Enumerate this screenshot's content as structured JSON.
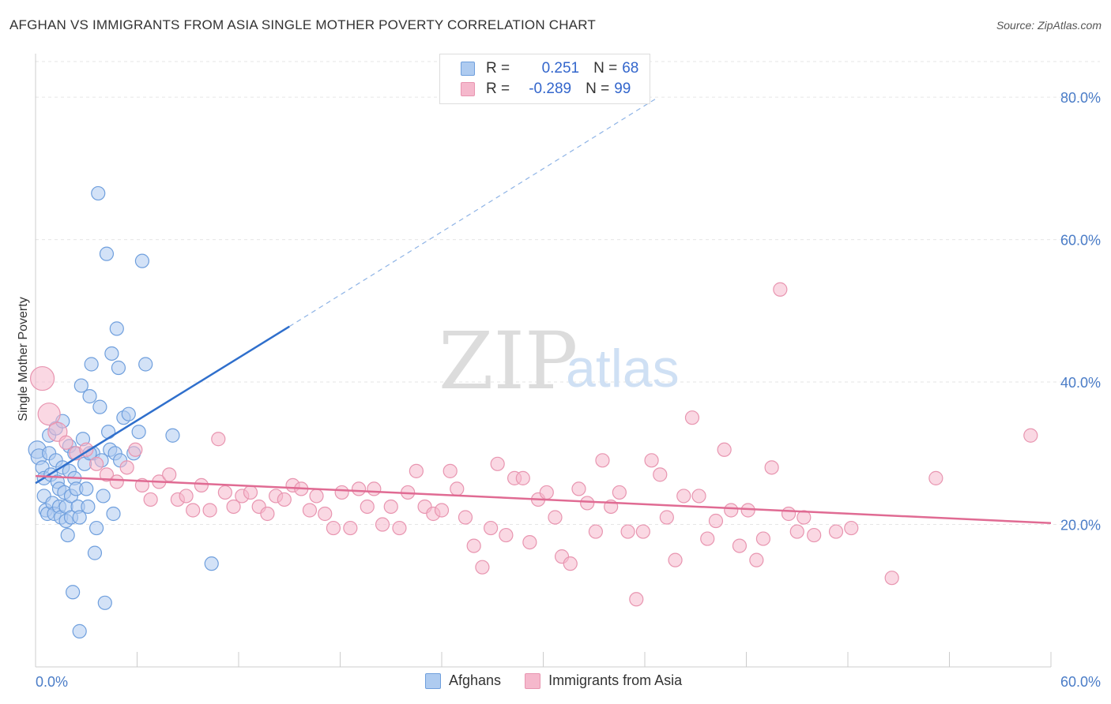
{
  "header": {
    "title": "AFGHAN VS IMMIGRANTS FROM ASIA SINGLE MOTHER POVERTY CORRELATION CHART",
    "source": "Source: ZipAtlas.com"
  },
  "watermark": {
    "zip": "ZIP",
    "atlas": "atlas"
  },
  "legend": {
    "rows": [
      {
        "r_label": "R = ",
        "r_value": "0.251",
        "n_label": "N = ",
        "n_value": "68"
      },
      {
        "r_label": "R = ",
        "r_value": "-0.289",
        "n_label": "N = ",
        "n_value": "99"
      }
    ]
  },
  "colors": {
    "afghans_fill": "#aecbf0",
    "afghans_stroke": "#6f9fdd",
    "afghans_line": "#2f6fcc",
    "asia_fill": "#f5b8cc",
    "asia_stroke": "#e895b0",
    "asia_line": "#e06b93",
    "tick_label": "#4a7cc7",
    "grid": "#e6e6e6"
  },
  "chart_data": {
    "type": "scatter",
    "title": "AFGHAN VS IMMIGRANTS FROM ASIA SINGLE MOTHER POVERTY CORRELATION CHART",
    "ylabel": "Single Mother Poverty",
    "xlim": [
      0,
      60
    ],
    "ylim": [
      0,
      85
    ],
    "x_tick_labels": [
      "0.0%",
      "60.0%"
    ],
    "y_ticks": [
      20,
      40,
      60,
      80
    ],
    "y_tick_labels": [
      "20.0%",
      "40.0%",
      "60.0%",
      "80.0%"
    ],
    "grid": "horizontal dashed",
    "legend_position": "top-center",
    "series": [
      {
        "name": "Afghans",
        "r": 0.251,
        "n": 68,
        "trend": {
          "x": [
            0,
            15
          ],
          "y": [
            25.8,
            47.8
          ],
          "extended_dashed_to": [
            36.8,
            80.0
          ]
        },
        "points": [
          [
            0.1,
            30.5
          ],
          [
            0.2,
            29.5
          ],
          [
            0.4,
            28.0
          ],
          [
            0.5,
            26.5
          ],
          [
            0.5,
            24.0
          ],
          [
            0.6,
            22.0
          ],
          [
            0.7,
            21.5
          ],
          [
            0.8,
            32.5
          ],
          [
            0.8,
            30.0
          ],
          [
            0.9,
            27.0
          ],
          [
            1.0,
            23.0
          ],
          [
            1.1,
            21.5
          ],
          [
            1.2,
            33.5
          ],
          [
            1.2,
            29.0
          ],
          [
            1.3,
            26.0
          ],
          [
            1.4,
            25.0
          ],
          [
            1.4,
            22.5
          ],
          [
            1.5,
            21.0
          ],
          [
            1.6,
            34.5
          ],
          [
            1.6,
            28.0
          ],
          [
            1.7,
            24.5
          ],
          [
            1.8,
            22.5
          ],
          [
            1.8,
            20.5
          ],
          [
            1.9,
            18.5
          ],
          [
            2.0,
            31.0
          ],
          [
            2.0,
            27.5
          ],
          [
            2.1,
            24.0
          ],
          [
            2.1,
            21.0
          ],
          [
            2.2,
            10.5
          ],
          [
            2.3,
            30.0
          ],
          [
            2.3,
            26.5
          ],
          [
            2.4,
            25.0
          ],
          [
            2.5,
            22.5
          ],
          [
            2.6,
            21.0
          ],
          [
            2.7,
            39.5
          ],
          [
            2.8,
            32.0
          ],
          [
            2.9,
            28.5
          ],
          [
            3.0,
            25.0
          ],
          [
            3.1,
            22.5
          ],
          [
            3.2,
            38.0
          ],
          [
            3.3,
            42.5
          ],
          [
            3.4,
            30.0
          ],
          [
            3.5,
            16.0
          ],
          [
            3.6,
            19.5
          ],
          [
            3.7,
            66.5
          ],
          [
            3.8,
            36.5
          ],
          [
            3.9,
            29.0
          ],
          [
            4.0,
            24.0
          ],
          [
            4.1,
            9.0
          ],
          [
            4.2,
            58.0
          ],
          [
            4.3,
            33.0
          ],
          [
            4.4,
            30.5
          ],
          [
            4.5,
            44.0
          ],
          [
            4.6,
            21.5
          ],
          [
            4.7,
            30.0
          ],
          [
            4.8,
            47.5
          ],
          [
            4.9,
            42.0
          ],
          [
            5.0,
            29.0
          ],
          [
            5.2,
            35.0
          ],
          [
            5.5,
            35.5
          ],
          [
            5.8,
            30.0
          ],
          [
            6.1,
            33.0
          ],
          [
            6.3,
            57.0
          ],
          [
            6.5,
            42.5
          ],
          [
            3.2,
            30.0
          ],
          [
            8.1,
            32.5
          ],
          [
            10.4,
            14.5
          ],
          [
            2.6,
            5.0
          ]
        ]
      },
      {
        "name": "Immigrants from Asia",
        "r": -0.289,
        "n": 99,
        "trend": {
          "x": [
            0,
            60
          ],
          "y": [
            26.8,
            20.2
          ]
        },
        "points": [
          [
            0.4,
            40.5
          ],
          [
            0.8,
            35.5
          ],
          [
            1.3,
            33.0
          ],
          [
            1.8,
            31.5
          ],
          [
            2.4,
            30.0
          ],
          [
            3.0,
            30.5
          ],
          [
            3.6,
            28.5
          ],
          [
            4.2,
            27.0
          ],
          [
            4.8,
            26.0
          ],
          [
            5.4,
            28.0
          ],
          [
            5.9,
            30.5
          ],
          [
            6.3,
            25.5
          ],
          [
            6.8,
            23.5
          ],
          [
            7.3,
            26.0
          ],
          [
            7.9,
            27.0
          ],
          [
            8.4,
            23.5
          ],
          [
            8.9,
            24.0
          ],
          [
            9.3,
            22.0
          ],
          [
            9.8,
            25.5
          ],
          [
            10.3,
            22.0
          ],
          [
            10.8,
            32.0
          ],
          [
            11.2,
            24.5
          ],
          [
            11.7,
            22.5
          ],
          [
            12.2,
            24.0
          ],
          [
            12.7,
            24.5
          ],
          [
            13.2,
            22.5
          ],
          [
            13.7,
            21.5
          ],
          [
            14.2,
            24.0
          ],
          [
            14.7,
            23.5
          ],
          [
            15.2,
            25.5
          ],
          [
            15.7,
            25.0
          ],
          [
            16.2,
            22.0
          ],
          [
            16.6,
            24.0
          ],
          [
            17.1,
            21.5
          ],
          [
            17.6,
            19.5
          ],
          [
            18.1,
            24.5
          ],
          [
            18.6,
            19.5
          ],
          [
            19.1,
            25.0
          ],
          [
            19.6,
            22.5
          ],
          [
            20.0,
            25.0
          ],
          [
            20.5,
            20.0
          ],
          [
            21.0,
            22.5
          ],
          [
            21.5,
            19.5
          ],
          [
            22.0,
            24.5
          ],
          [
            22.5,
            27.5
          ],
          [
            23.0,
            22.5
          ],
          [
            23.5,
            21.5
          ],
          [
            24.0,
            22.0
          ],
          [
            24.5,
            27.5
          ],
          [
            24.9,
            25.0
          ],
          [
            25.4,
            21.0
          ],
          [
            25.9,
            17.0
          ],
          [
            26.4,
            14.0
          ],
          [
            26.9,
            19.5
          ],
          [
            27.3,
            28.5
          ],
          [
            27.8,
            18.5
          ],
          [
            28.3,
            26.5
          ],
          [
            28.8,
            26.5
          ],
          [
            29.2,
            17.5
          ],
          [
            29.7,
            23.5
          ],
          [
            30.2,
            24.5
          ],
          [
            30.7,
            21.0
          ],
          [
            31.1,
            15.5
          ],
          [
            31.6,
            14.5
          ],
          [
            32.1,
            25.0
          ],
          [
            32.6,
            23.0
          ],
          [
            33.1,
            19.0
          ],
          [
            33.5,
            29.0
          ],
          [
            34.0,
            22.5
          ],
          [
            34.5,
            24.5
          ],
          [
            35.0,
            19.0
          ],
          [
            35.5,
            9.5
          ],
          [
            35.9,
            19.0
          ],
          [
            36.4,
            29.0
          ],
          [
            36.9,
            27.0
          ],
          [
            37.3,
            21.0
          ],
          [
            37.8,
            15.0
          ],
          [
            38.3,
            24.0
          ],
          [
            38.8,
            35.0
          ],
          [
            39.2,
            24.0
          ],
          [
            39.7,
            18.0
          ],
          [
            40.2,
            20.5
          ],
          [
            40.7,
            30.5
          ],
          [
            41.1,
            22.0
          ],
          [
            41.6,
            17.0
          ],
          [
            42.1,
            22.0
          ],
          [
            42.6,
            15.0
          ],
          [
            43.0,
            18.0
          ],
          [
            43.5,
            28.0
          ],
          [
            44.0,
            53.0
          ],
          [
            44.5,
            21.5
          ],
          [
            45.0,
            19.0
          ],
          [
            45.4,
            21.0
          ],
          [
            46.0,
            18.5
          ],
          [
            47.3,
            19.0
          ],
          [
            48.2,
            19.5
          ],
          [
            50.6,
            12.5
          ],
          [
            53.2,
            26.5
          ],
          [
            58.8,
            32.5
          ]
        ]
      }
    ]
  },
  "bottom_legend": {
    "items": [
      {
        "label": "Afghans"
      },
      {
        "label": "Immigrants from Asia"
      }
    ]
  }
}
